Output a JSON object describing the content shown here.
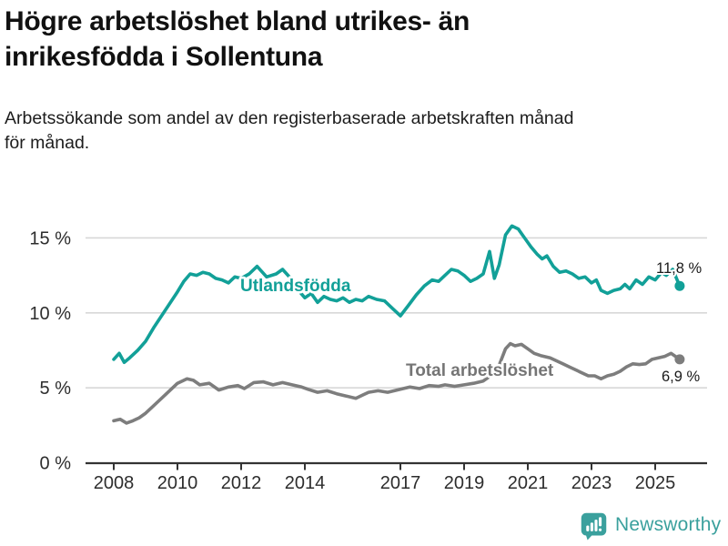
{
  "title": "Högre arbetslöshet bland utrikes- än\ninrikesfödda i Sollentuna",
  "subtitle": "Arbetssökande som andel av den registerbaserade arbetskraften månad\nför månad.",
  "branding": {
    "logo_text": "Newsworthy",
    "logo_icon": "bar-chart-speech-bubble-icon",
    "logo_color": "#3aa09d"
  },
  "colors": {
    "utlandsfodda_line": "#12a098",
    "total_line": "#7d7d7d",
    "gridline": "#d8d8d8",
    "axis": "#333333",
    "axis_text": "#2d2d2d",
    "title_text": "#111111",
    "value_label_text": "#1a1a1a"
  },
  "chart_data": {
    "type": "line",
    "title": "Högre arbetslöshet bland utrikes- än inrikesfödda i Sollentuna",
    "subtitle": "Arbetssökande som andel av den registerbaserade arbetskraften månad för månad.",
    "ylabel": "",
    "xlabel": "",
    "y_axis": {
      "unit": "%",
      "tick_values": [
        15,
        10,
        5,
        0
      ],
      "tick_labels": [
        "15 %",
        "10 %",
        "5 %",
        "0 %"
      ],
      "range": [
        0,
        16.5
      ],
      "grid": true
    },
    "x_axis": {
      "tick_years": [
        2008,
        2010,
        2012,
        2014,
        2017,
        2019,
        2021,
        2023,
        2025
      ],
      "range": [
        2007.1,
        2026.6
      ]
    },
    "series": [
      {
        "name": "Utlandsfödda",
        "color": "#12a098",
        "end_label": "11,8 %",
        "end_value": 11.8,
        "points": [
          [
            2008.0,
            6.9
          ],
          [
            2008.17,
            7.3
          ],
          [
            2008.33,
            6.7
          ],
          [
            2008.5,
            7.0
          ],
          [
            2008.75,
            7.5
          ],
          [
            2009.0,
            8.1
          ],
          [
            2009.25,
            9.0
          ],
          [
            2009.5,
            9.8
          ],
          [
            2009.75,
            10.6
          ],
          [
            2010.0,
            11.4
          ],
          [
            2010.2,
            12.1
          ],
          [
            2010.4,
            12.6
          ],
          [
            2010.6,
            12.5
          ],
          [
            2010.8,
            12.7
          ],
          [
            2011.0,
            12.6
          ],
          [
            2011.2,
            12.3
          ],
          [
            2011.4,
            12.2
          ],
          [
            2011.6,
            12.0
          ],
          [
            2011.8,
            12.4
          ],
          [
            2012.0,
            12.3
          ],
          [
            2012.25,
            12.6
          ],
          [
            2012.5,
            13.1
          ],
          [
            2012.8,
            12.4
          ],
          [
            2013.1,
            12.6
          ],
          [
            2013.3,
            12.9
          ],
          [
            2013.6,
            12.2
          ],
          [
            2013.8,
            11.5
          ],
          [
            2014.0,
            11.0
          ],
          [
            2014.2,
            11.3
          ],
          [
            2014.4,
            10.7
          ],
          [
            2014.6,
            11.1
          ],
          [
            2014.8,
            10.9
          ],
          [
            2015.0,
            10.8
          ],
          [
            2015.2,
            11.0
          ],
          [
            2015.4,
            10.7
          ],
          [
            2015.6,
            10.9
          ],
          [
            2015.8,
            10.8
          ],
          [
            2016.0,
            11.1
          ],
          [
            2016.25,
            10.9
          ],
          [
            2016.5,
            10.8
          ],
          [
            2016.75,
            10.3
          ],
          [
            2017.0,
            9.8
          ],
          [
            2017.25,
            10.5
          ],
          [
            2017.5,
            11.2
          ],
          [
            2017.75,
            11.8
          ],
          [
            2018.0,
            12.2
          ],
          [
            2018.2,
            12.1
          ],
          [
            2018.4,
            12.5
          ],
          [
            2018.6,
            12.9
          ],
          [
            2018.8,
            12.8
          ],
          [
            2019.0,
            12.5
          ],
          [
            2019.2,
            12.1
          ],
          [
            2019.4,
            12.3
          ],
          [
            2019.6,
            12.6
          ],
          [
            2019.8,
            14.1
          ],
          [
            2019.95,
            12.3
          ],
          [
            2020.1,
            13.2
          ],
          [
            2020.3,
            15.2
          ],
          [
            2020.5,
            15.8
          ],
          [
            2020.7,
            15.6
          ],
          [
            2020.9,
            15.0
          ],
          [
            2021.1,
            14.4
          ],
          [
            2021.3,
            13.9
          ],
          [
            2021.45,
            13.6
          ],
          [
            2021.6,
            13.8
          ],
          [
            2021.8,
            13.1
          ],
          [
            2022.0,
            12.7
          ],
          [
            2022.2,
            12.8
          ],
          [
            2022.4,
            12.6
          ],
          [
            2022.6,
            12.3
          ],
          [
            2022.8,
            12.4
          ],
          [
            2023.0,
            12.0
          ],
          [
            2023.15,
            12.2
          ],
          [
            2023.3,
            11.5
          ],
          [
            2023.5,
            11.3
          ],
          [
            2023.7,
            11.5
          ],
          [
            2023.9,
            11.6
          ],
          [
            2024.05,
            11.9
          ],
          [
            2024.2,
            11.6
          ],
          [
            2024.4,
            12.2
          ],
          [
            2024.6,
            11.9
          ],
          [
            2024.8,
            12.4
          ],
          [
            2025.0,
            12.2
          ],
          [
            2025.2,
            12.7
          ],
          [
            2025.35,
            12.5
          ],
          [
            2025.55,
            12.9
          ],
          [
            2025.77,
            11.8
          ]
        ]
      },
      {
        "name": "Total arbetslöshet",
        "color": "#7d7d7d",
        "end_label": "6,9 %",
        "end_value": 6.9,
        "points": [
          [
            2008.0,
            2.8
          ],
          [
            2008.2,
            2.9
          ],
          [
            2008.4,
            2.65
          ],
          [
            2008.6,
            2.8
          ],
          [
            2008.8,
            3.0
          ],
          [
            2009.0,
            3.3
          ],
          [
            2009.2,
            3.7
          ],
          [
            2009.4,
            4.1
          ],
          [
            2009.6,
            4.5
          ],
          [
            2009.8,
            4.9
          ],
          [
            2010.0,
            5.3
          ],
          [
            2010.3,
            5.6
          ],
          [
            2010.5,
            5.5
          ],
          [
            2010.7,
            5.2
          ],
          [
            2011.0,
            5.3
          ],
          [
            2011.3,
            4.85
          ],
          [
            2011.6,
            5.05
          ],
          [
            2011.9,
            5.15
          ],
          [
            2012.1,
            4.95
          ],
          [
            2012.4,
            5.35
          ],
          [
            2012.7,
            5.4
          ],
          [
            2013.0,
            5.2
          ],
          [
            2013.3,
            5.35
          ],
          [
            2013.6,
            5.2
          ],
          [
            2013.9,
            5.05
          ],
          [
            2014.1,
            4.9
          ],
          [
            2014.4,
            4.7
          ],
          [
            2014.7,
            4.8
          ],
          [
            2015.0,
            4.6
          ],
          [
            2015.3,
            4.45
          ],
          [
            2015.6,
            4.3
          ],
          [
            2015.8,
            4.5
          ],
          [
            2016.0,
            4.7
          ],
          [
            2016.3,
            4.8
          ],
          [
            2016.6,
            4.7
          ],
          [
            2017.0,
            4.9
          ],
          [
            2017.3,
            5.05
          ],
          [
            2017.6,
            4.95
          ],
          [
            2017.9,
            5.15
          ],
          [
            2018.2,
            5.1
          ],
          [
            2018.4,
            5.2
          ],
          [
            2018.7,
            5.1
          ],
          [
            2019.0,
            5.2
          ],
          [
            2019.3,
            5.3
          ],
          [
            2019.6,
            5.45
          ],
          [
            2019.9,
            5.9
          ],
          [
            2020.1,
            6.5
          ],
          [
            2020.3,
            7.6
          ],
          [
            2020.45,
            7.95
          ],
          [
            2020.6,
            7.8
          ],
          [
            2020.8,
            7.9
          ],
          [
            2021.0,
            7.6
          ],
          [
            2021.2,
            7.3
          ],
          [
            2021.4,
            7.15
          ],
          [
            2021.7,
            7.0
          ],
          [
            2021.9,
            6.8
          ],
          [
            2022.1,
            6.6
          ],
          [
            2022.3,
            6.4
          ],
          [
            2022.5,
            6.2
          ],
          [
            2022.7,
            6.0
          ],
          [
            2022.9,
            5.8
          ],
          [
            2023.1,
            5.8
          ],
          [
            2023.3,
            5.6
          ],
          [
            2023.5,
            5.8
          ],
          [
            2023.7,
            5.9
          ],
          [
            2023.9,
            6.1
          ],
          [
            2024.1,
            6.4
          ],
          [
            2024.3,
            6.6
          ],
          [
            2024.5,
            6.55
          ],
          [
            2024.7,
            6.6
          ],
          [
            2024.9,
            6.9
          ],
          [
            2025.1,
            7.0
          ],
          [
            2025.3,
            7.1
          ],
          [
            2025.5,
            7.3
          ],
          [
            2025.77,
            6.9
          ]
        ]
      }
    ],
    "legend_position": "inline-labels"
  }
}
